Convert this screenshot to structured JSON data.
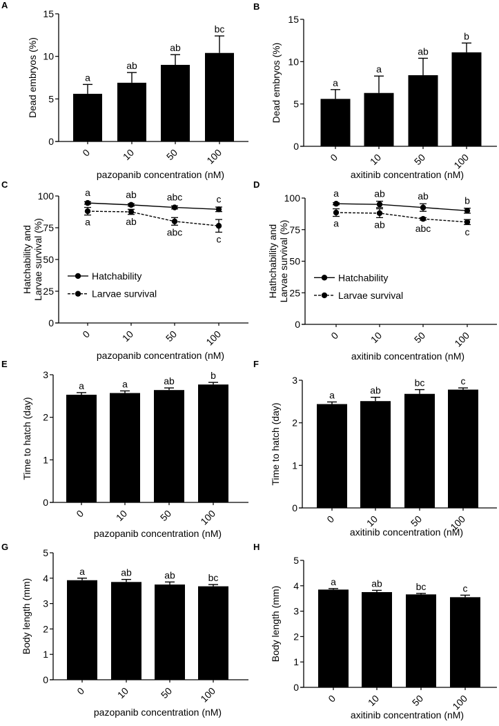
{
  "figure": {
    "panels": [
      "A",
      "B",
      "C",
      "D",
      "E",
      "F",
      "G",
      "H"
    ]
  },
  "chart_data": [
    {
      "panel": "A",
      "type": "bar",
      "title": "",
      "xlabel": "pazopanib concentration (nM)",
      "ylabel": "Dead embryos (%)",
      "categories": [
        "0",
        "10",
        "50",
        "100"
      ],
      "values": [
        5.6,
        6.9,
        9.0,
        10.4
      ],
      "errors": [
        1.1,
        1.2,
        1.2,
        2.0
      ],
      "significance": [
        "a",
        "ab",
        "ab",
        "bc"
      ],
      "ylim": [
        0,
        15
      ],
      "yticks": [
        0,
        5,
        10,
        15
      ],
      "grid": false
    },
    {
      "panel": "B",
      "type": "bar",
      "title": "",
      "xlabel": "axitinib concentration (nM)",
      "ylabel": "Dead embryos (%)",
      "categories": [
        "0",
        "10",
        "50",
        "100"
      ],
      "values": [
        5.6,
        6.3,
        8.4,
        11.1
      ],
      "errors": [
        1.1,
        2.0,
        2.0,
        1.1
      ],
      "significance": [
        "a",
        "a",
        "ab",
        "b"
      ],
      "ylim": [
        0,
        15
      ],
      "yticks": [
        0,
        5,
        10,
        15
      ],
      "grid": false
    },
    {
      "panel": "C",
      "type": "line",
      "title": "",
      "xlabel": "pazopanib concentration (nM)",
      "ylabel": "Hatchability and Larvae survival (%)",
      "categories": [
        "0",
        "10",
        "50",
        "100"
      ],
      "series": [
        {
          "name": "Hatchability",
          "style": "solid",
          "values": [
            94.5,
            93.0,
            91.0,
            89.5
          ],
          "errors": [
            1.0,
            1.0,
            1.2,
            1.8
          ],
          "significance": [
            "a",
            "ab",
            "abc",
            "c"
          ],
          "label_position": "above"
        },
        {
          "name": "Larvae survival",
          "style": "dashed",
          "values": [
            88.0,
            87.5,
            80.0,
            76.5
          ],
          "errors": [
            3.0,
            2.0,
            3.0,
            5.0
          ],
          "significance": [
            "a",
            "ab",
            "abc",
            "c"
          ],
          "label_position": "below"
        }
      ],
      "ylim": [
        0,
        100
      ],
      "yticks": [
        0,
        25,
        50,
        75,
        100
      ],
      "legend": "center-left",
      "grid": false
    },
    {
      "panel": "D",
      "type": "line",
      "title": "",
      "xlabel": "axitinib concentration (nM)",
      "ylabel": "Hathchability and Larvae survival (%)",
      "categories": [
        "0",
        "10",
        "50",
        "100"
      ],
      "series": [
        {
          "name": "Hatchability",
          "style": "solid",
          "values": [
            95.5,
            95.0,
            92.5,
            90.0
          ],
          "errors": [
            0.8,
            2.5,
            3.0,
            2.0
          ],
          "significance": [
            "a",
            "ab",
            "ab",
            "b"
          ],
          "label_position": "above"
        },
        {
          "name": "Larvae survival",
          "style": "dashed",
          "values": [
            88.5,
            88.0,
            83.5,
            81.0
          ],
          "errors": [
            3.0,
            3.5,
            1.0,
            2.0
          ],
          "significance": [
            "a",
            "ab",
            "abc",
            "c"
          ],
          "label_position": "below"
        }
      ],
      "ylim": [
        0,
        100
      ],
      "yticks": [
        0,
        25,
        50,
        75,
        100
      ],
      "legend": "center-left",
      "grid": false
    },
    {
      "panel": "E",
      "type": "bar",
      "title": "",
      "xlabel": "pazopanib concentration (nM)",
      "ylabel": "Time to hatch  (day)",
      "categories": [
        "0",
        "10",
        "50",
        "100"
      ],
      "values": [
        2.53,
        2.57,
        2.64,
        2.77
      ],
      "errors": [
        0.05,
        0.05,
        0.05,
        0.05
      ],
      "significance": [
        "a",
        "a",
        "ab",
        "b"
      ],
      "ylim": [
        0,
        3
      ],
      "yticks": [
        0,
        1,
        2,
        3
      ],
      "grid": false
    },
    {
      "panel": "F",
      "type": "bar",
      "title": "",
      "xlabel": "axitinib concentration (nM)",
      "ylabel": "Time to hatch  (day)",
      "categories": [
        "0",
        "10",
        "50",
        "100"
      ],
      "values": [
        2.44,
        2.51,
        2.68,
        2.78
      ],
      "errors": [
        0.05,
        0.09,
        0.1,
        0.04
      ],
      "significance": [
        "a",
        "ab",
        "bc",
        "c"
      ],
      "ylim": [
        0,
        3
      ],
      "yticks": [
        0,
        1,
        2,
        3
      ],
      "grid": false
    },
    {
      "panel": "G",
      "type": "bar",
      "title": "",
      "xlabel": "pazopanib concentration (nM)",
      "ylabel": "Body length (mm)",
      "categories": [
        "0",
        "10",
        "50",
        "100"
      ],
      "values": [
        3.92,
        3.85,
        3.75,
        3.68
      ],
      "errors": [
        0.08,
        0.1,
        0.1,
        0.07
      ],
      "significance": [
        "a",
        "ab",
        "ab",
        "bc"
      ],
      "ylim": [
        0,
        5
      ],
      "yticks": [
        0,
        1,
        2,
        3,
        4,
        5
      ],
      "grid": false
    },
    {
      "panel": "H",
      "type": "bar",
      "title": "",
      "xlabel": "axitinib concentration (nM)",
      "ylabel": "Body length (mm)",
      "categories": [
        "0",
        "10",
        "50",
        "100"
      ],
      "values": [
        3.85,
        3.75,
        3.66,
        3.55
      ],
      "errors": [
        0.04,
        0.07,
        0.04,
        0.08
      ],
      "significance": [
        "a",
        "ab",
        "bc",
        "c"
      ],
      "ylim": [
        0,
        5
      ],
      "yticks": [
        0,
        1,
        2,
        3,
        4,
        5
      ],
      "grid": false
    }
  ]
}
